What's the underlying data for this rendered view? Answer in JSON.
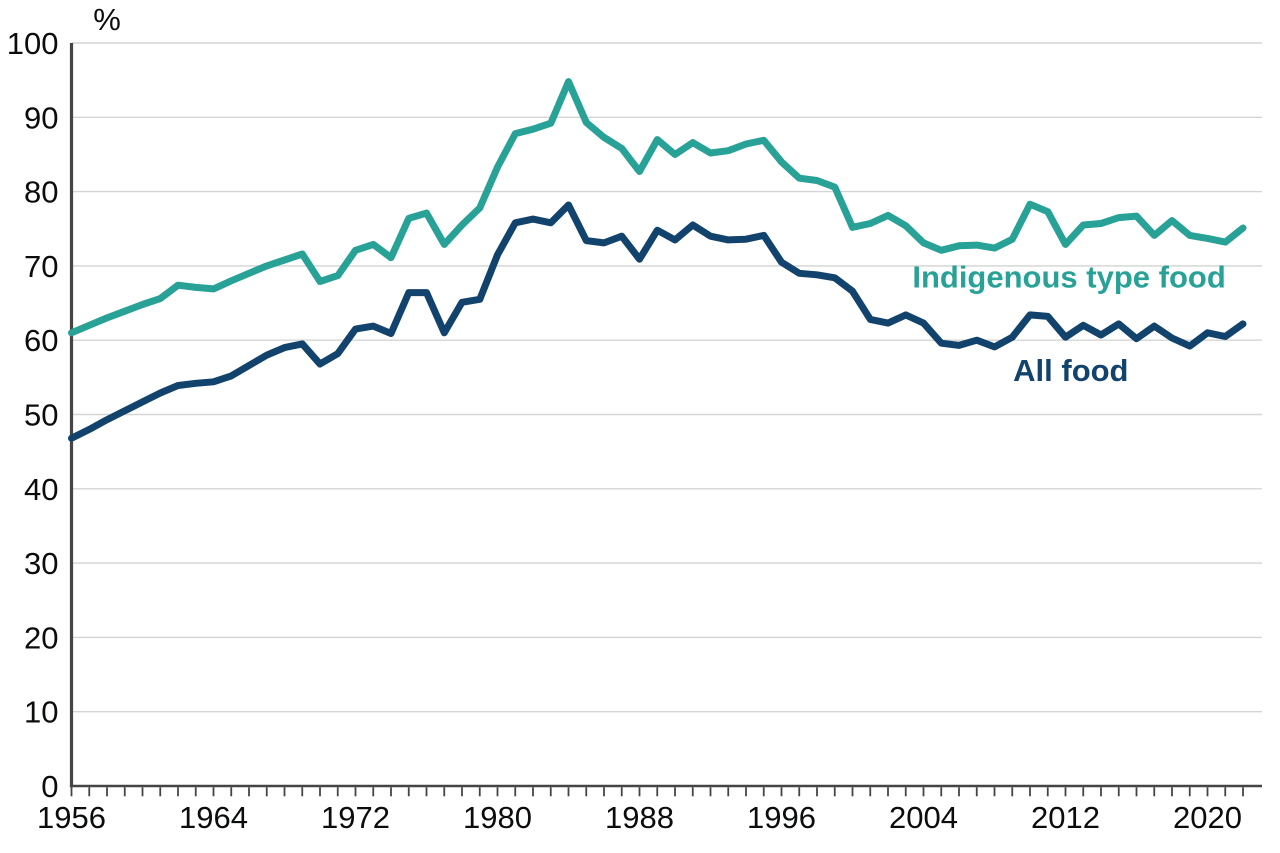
{
  "page": {
    "background": "#ffffff"
  },
  "style": {
    "grid_color": "#d4d4d4",
    "axis_color": "#454545",
    "tick_color": "#454545",
    "text_color": "#0b0c0c",
    "indigenous_color": "#28A197",
    "all_food_color": "#12436D"
  },
  "chart_data": {
    "type": "line",
    "title": "",
    "xlabel": "",
    "ylabel": "%",
    "ylim": [
      0,
      100
    ],
    "y_ticks": [
      0,
      10,
      20,
      30,
      40,
      50,
      60,
      70,
      80,
      90,
      100
    ],
    "x_label_years": [
      1956,
      1964,
      1972,
      1980,
      1988,
      1996,
      2004,
      2012,
      2020
    ],
    "x_minor_tick_interval": 1,
    "grid": "horizontal",
    "legend_position": "inline-series-labels",
    "x": [
      1956,
      1957,
      1958,
      1959,
      1960,
      1961,
      1962,
      1963,
      1964,
      1965,
      1966,
      1967,
      1968,
      1969,
      1970,
      1971,
      1972,
      1973,
      1974,
      1975,
      1976,
      1977,
      1978,
      1979,
      1980,
      1981,
      1982,
      1983,
      1984,
      1985,
      1986,
      1987,
      1988,
      1989,
      1990,
      1991,
      1992,
      1993,
      1994,
      1995,
      1996,
      1997,
      1998,
      1999,
      2000,
      2001,
      2002,
      2003,
      2004,
      2005,
      2006,
      2007,
      2008,
      2009,
      2010,
      2011,
      2012,
      2013,
      2014,
      2015,
      2016,
      2017,
      2018,
      2019,
      2020,
      2021,
      2022
    ],
    "series": [
      {
        "name": "Indigenous type food",
        "color": "#28A197",
        "label_position": {
          "x": 2012.2,
          "y": 68.6
        },
        "values": [
          61.0,
          62.0,
          63.0,
          63.9,
          64.8,
          65.6,
          67.4,
          67.1,
          66.9,
          68.0,
          69.0,
          70.0,
          70.8,
          71.6,
          67.9,
          68.7,
          72.1,
          72.9,
          71.1,
          76.4,
          77.1,
          72.9,
          75.5,
          77.8,
          83.3,
          87.8,
          88.4,
          89.2,
          94.8,
          89.3,
          87.3,
          85.8,
          82.7,
          87.0,
          85.0,
          86.6,
          85.2,
          85.5,
          86.4,
          86.9,
          84.0,
          81.8,
          81.5,
          80.6,
          75.2,
          75.7,
          76.8,
          75.4,
          73.1,
          72.1,
          72.7,
          72.8,
          72.4,
          73.6,
          78.3,
          77.3,
          72.9,
          75.5,
          75.7,
          76.5,
          76.7,
          74.1,
          76.1,
          74.1,
          73.7,
          73.2,
          75.1
        ]
      },
      {
        "name": "All food",
        "color": "#12436D",
        "label_position": {
          "x": 2012.3,
          "y": 56.0
        },
        "values": [
          46.8,
          48.0,
          49.3,
          50.5,
          51.7,
          52.9,
          53.9,
          54.2,
          54.4,
          55.2,
          56.6,
          58.0,
          59.0,
          59.5,
          56.8,
          58.2,
          61.5,
          61.9,
          60.9,
          66.4,
          66.4,
          61.0,
          65.1,
          65.5,
          71.5,
          75.8,
          76.3,
          75.8,
          78.2,
          73.4,
          73.1,
          74.0,
          70.9,
          74.8,
          73.5,
          75.5,
          74.0,
          73.5,
          73.6,
          74.1,
          70.5,
          69.0,
          68.8,
          68.4,
          66.6,
          62.8,
          62.3,
          63.4,
          62.3,
          59.6,
          59.3,
          60.0,
          59.1,
          60.4,
          63.4,
          63.2,
          60.4,
          62.0,
          60.7,
          62.2,
          60.2,
          61.9,
          60.3,
          59.2,
          61.0,
          60.5,
          62.2
        ]
      }
    ]
  }
}
